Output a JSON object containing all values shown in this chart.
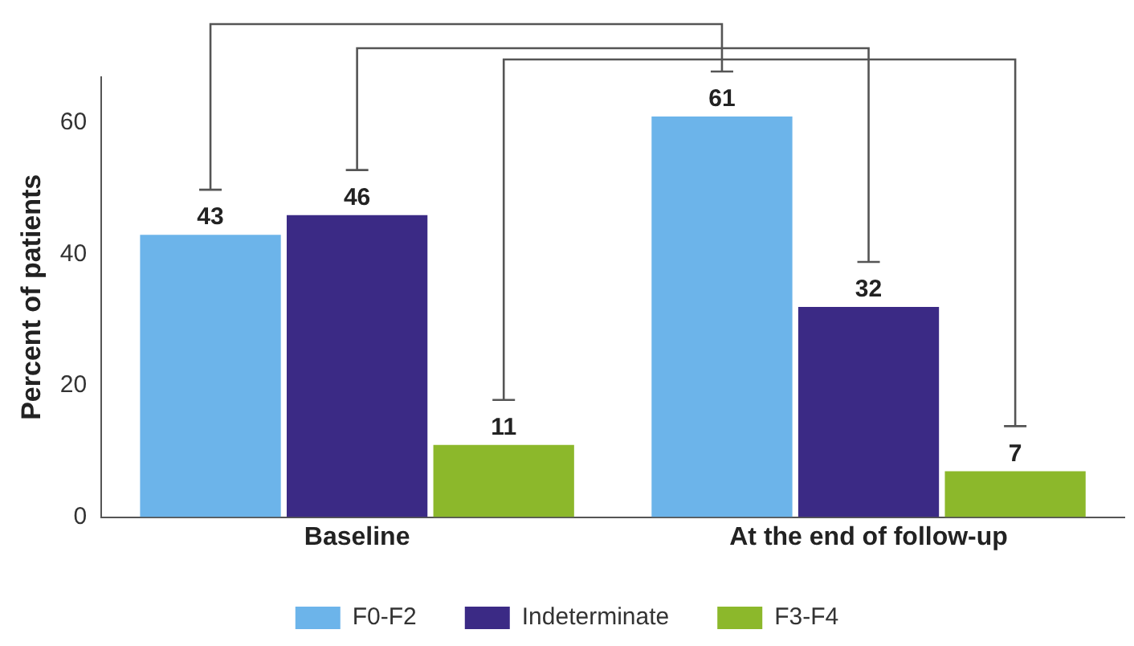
{
  "chart_data": {
    "type": "bar",
    "ylabel": "Percent of patients",
    "categories": [
      "Baseline",
      "At the end of follow-up"
    ],
    "series": [
      {
        "name": "F0-F2",
        "color": "#6cb4ea",
        "values": [
          43,
          61
        ]
      },
      {
        "name": "Indeterminate",
        "color": "#3b2a85",
        "values": [
          46,
          32
        ]
      },
      {
        "name": "F3-F4",
        "color": "#8cb82b",
        "values": [
          11,
          7
        ]
      }
    ],
    "ylim": [
      0,
      67
    ],
    "yticks": [
      0,
      20,
      40,
      60
    ],
    "grid": false,
    "legend": "bottom",
    "data_labels": true
  }
}
